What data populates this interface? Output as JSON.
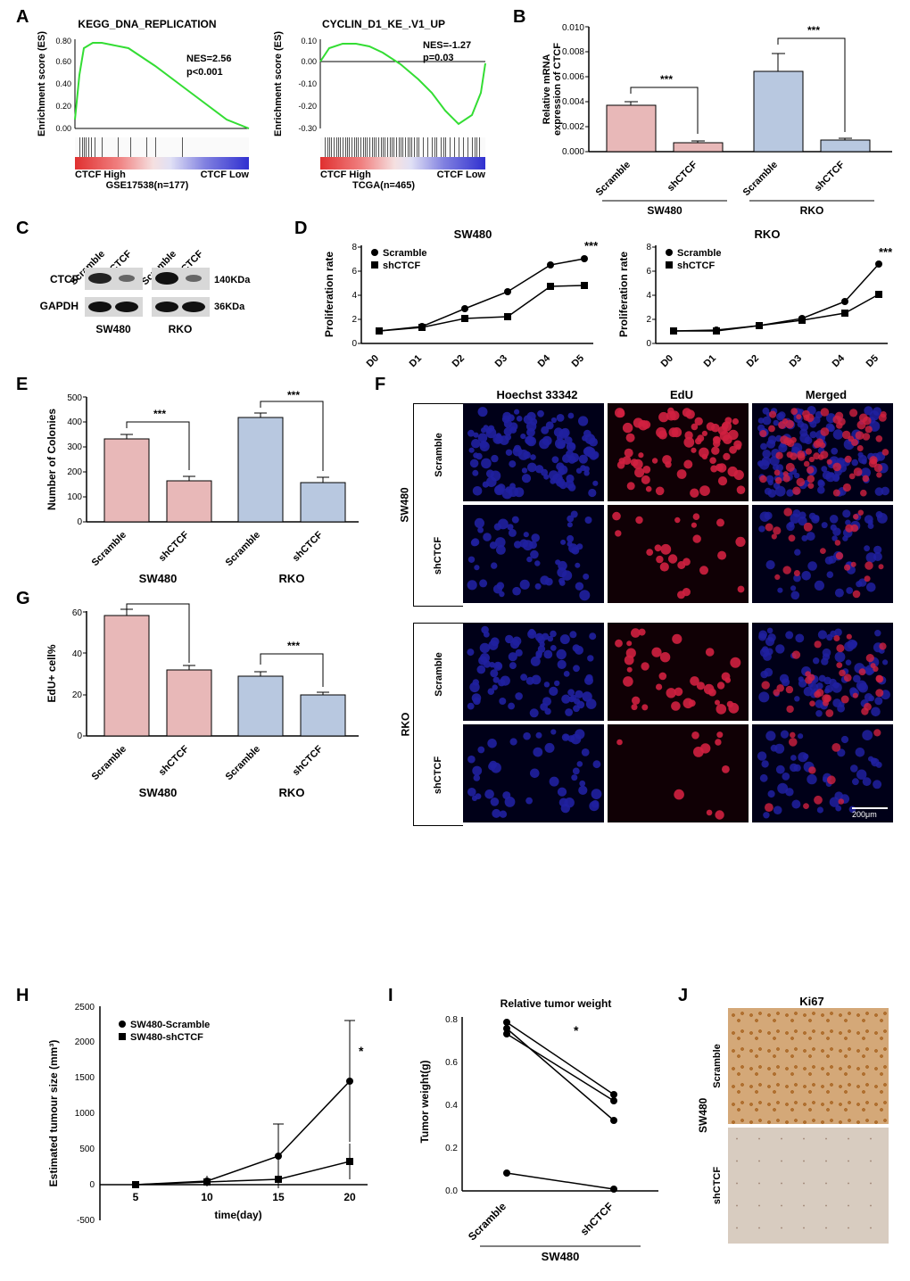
{
  "panelA": {
    "label": "A",
    "left": {
      "title": "KEGG_DNA_REPLICATION",
      "nes": "NES=2.56",
      "p": "p<0.001",
      "xlabel_left": "CTCF High",
      "xlabel_right": "CTCF Low",
      "subtitle": "GSE17538(n=177)",
      "ylabel": "Enrichment score (ES)",
      "yticks": [
        "0.00",
        "0.20",
        "0.40",
        "0.60",
        "0.80"
      ],
      "curve_color": "#33dd33",
      "tick_positions": [
        5,
        8,
        10,
        12,
        15,
        18,
        22,
        30,
        48,
        62,
        80,
        90,
        120
      ]
    },
    "right": {
      "title": "CYCLIN_D1_KE_.V1_UP",
      "nes": "NES=-1.27",
      "p": "p=0.03",
      "xlabel_left": "CTCF High",
      "xlabel_right": "CTCF Low",
      "subtitle": "TCGA(n=465)",
      "ylabel": "Enrichment score (ES)",
      "yticks": [
        "-0.30",
        "-0.20",
        "-0.10",
        "0.00",
        "0.10"
      ],
      "curve_color": "#33dd33",
      "tick_positions": [
        5,
        8,
        10,
        12,
        15,
        18,
        20,
        22,
        25,
        28,
        30,
        32,
        35,
        38,
        40,
        42,
        45,
        48,
        50,
        52,
        55,
        58,
        60,
        62,
        65,
        68,
        70,
        72,
        75,
        78,
        80,
        82,
        85,
        88,
        90,
        92,
        95,
        98,
        100,
        102,
        105,
        108,
        110,
        115,
        120,
        125,
        128,
        130,
        135,
        138,
        140,
        145,
        150,
        155,
        160,
        165,
        170,
        173,
        175,
        178
      ]
    }
  },
  "panelB": {
    "label": "B",
    "ylabel": "Relative mRNA\nexpression of CTCF",
    "yticks": [
      "0.000",
      "0.002",
      "0.004",
      "0.006",
      "0.008",
      "0.010"
    ],
    "groups": [
      "SW480",
      "RKO"
    ],
    "categories": [
      "Scramble",
      "shCTCF",
      "Scramble",
      "shCTCF"
    ],
    "values": [
      0.0037,
      0.0007,
      0.0064,
      0.0009
    ],
    "errors": [
      0.0003,
      0.0001,
      0.0014,
      0.0001
    ],
    "colors": [
      "#e8b8b8",
      "#e8b8b8",
      "#b8c8e0",
      "#b8c8e0"
    ],
    "sig": "***"
  },
  "panelC": {
    "label": "C",
    "lanes": [
      "Scramble",
      "shCTCF",
      "Scramble",
      "shCTCF"
    ],
    "rows": [
      "CTCF",
      "GAPDH"
    ],
    "sizes": [
      "140KDa",
      "36KDa"
    ],
    "cells": [
      "SW480",
      "RKO"
    ]
  },
  "panelD": {
    "label": "D",
    "left": {
      "title": "SW480",
      "ylabel": "Proliferation rate",
      "yticks": [
        "0",
        "2",
        "4",
        "6",
        "8"
      ],
      "xticks": [
        "D0",
        "D1",
        "D2",
        "D3",
        "D4",
        "D5"
      ],
      "legend": [
        "Scramble",
        "shCTCF"
      ],
      "series1": [
        1.0,
        1.4,
        2.9,
        4.3,
        6.5,
        7.0
      ],
      "series2": [
        1.0,
        1.3,
        2.1,
        2.2,
        4.7,
        4.8
      ],
      "sig": "***"
    },
    "right": {
      "title": "RKO",
      "ylabel": "Proliferation rate",
      "yticks": [
        "0",
        "2",
        "4",
        "6",
        "8"
      ],
      "xticks": [
        "D0",
        "D1",
        "D2",
        "D3",
        "D4",
        "D5"
      ],
      "legend": [
        "Scramble",
        "shCTCF"
      ],
      "series1": [
        1.0,
        1.1,
        1.5,
        2.1,
        3.5,
        6.6
      ],
      "series2": [
        1.0,
        1.05,
        1.5,
        1.9,
        2.5,
        4.1
      ],
      "sig": "***"
    }
  },
  "panelE": {
    "label": "E",
    "ylabel": "Number of Colonies",
    "yticks": [
      "0",
      "100",
      "200",
      "300",
      "400",
      "500"
    ],
    "groups": [
      "SW480",
      "RKO"
    ],
    "categories": [
      "Scramble",
      "shCTCF",
      "Scramble",
      "shCTCF"
    ],
    "values": [
      330,
      162,
      415,
      158
    ],
    "errors": [
      18,
      20,
      18,
      22
    ],
    "colors": [
      "#e8b8b8",
      "#e8b8b8",
      "#b8c8e0",
      "#b8c8e0"
    ],
    "sig": "***"
  },
  "panelF": {
    "label": "F",
    "col_headers": [
      "Hoechst 33342",
      "EdU",
      "Merged"
    ],
    "row_labels": [
      "Scramble",
      "shCTCF",
      "Scramble",
      "shCTCF"
    ],
    "group_labels": [
      "SW480",
      "RKO"
    ],
    "blue": "#2020a0",
    "red": "#d02040",
    "scale": "200μm"
  },
  "panelG": {
    "label": "G",
    "ylabel": "EdU+ cell%",
    "yticks": [
      "0",
      "20",
      "40",
      "60"
    ],
    "groups": [
      "SW480",
      "RKO"
    ],
    "categories": [
      "Scramble",
      "shCTCF",
      "Scramble",
      "shCTCF"
    ],
    "values": [
      58,
      32,
      29,
      20
    ],
    "errors": [
      3,
      2,
      2,
      1
    ],
    "colors": [
      "#e8b8b8",
      "#e8b8b8",
      "#b8c8e0",
      "#b8c8e0"
    ],
    "sig": "***"
  },
  "panelH": {
    "label": "H",
    "ylabel": "Estimated tumour size (mm³)",
    "yticks": [
      "-500",
      "0",
      "500",
      "1000",
      "1500",
      "2000",
      "2500"
    ],
    "xticks": [
      "5",
      "10",
      "15",
      "20"
    ],
    "xlabel": "time(day)",
    "legend": [
      "SW480-Scramble",
      "SW480-shCTCF"
    ],
    "series1": [
      0,
      50,
      400,
      1450
    ],
    "series1_err": [
      30,
      80,
      450,
      850
    ],
    "series2": [
      0,
      40,
      80,
      330
    ],
    "series2_err": [
      20,
      50,
      60,
      250
    ],
    "sig": "*"
  },
  "panelI": {
    "label": "I",
    "title": "Relative tumor weight",
    "ylabel": "Tumor weight(g)",
    "yticks": [
      "0.0",
      "0.2",
      "0.4",
      "0.6",
      "0.8"
    ],
    "xticks": [
      "Scramble",
      "shCTCF"
    ],
    "group": "SW480",
    "pairs": [
      [
        0.78,
        0.45
      ],
      [
        0.73,
        0.42
      ],
      [
        0.76,
        0.33
      ],
      [
        0.08,
        0.005
      ]
    ],
    "sig": "*"
  },
  "panelJ": {
    "label": "J",
    "title": "Ki67",
    "rows": [
      "Scramble",
      "shCTCF"
    ],
    "group": "SW480",
    "colors": [
      "#c89060",
      "#cab8a0"
    ]
  }
}
